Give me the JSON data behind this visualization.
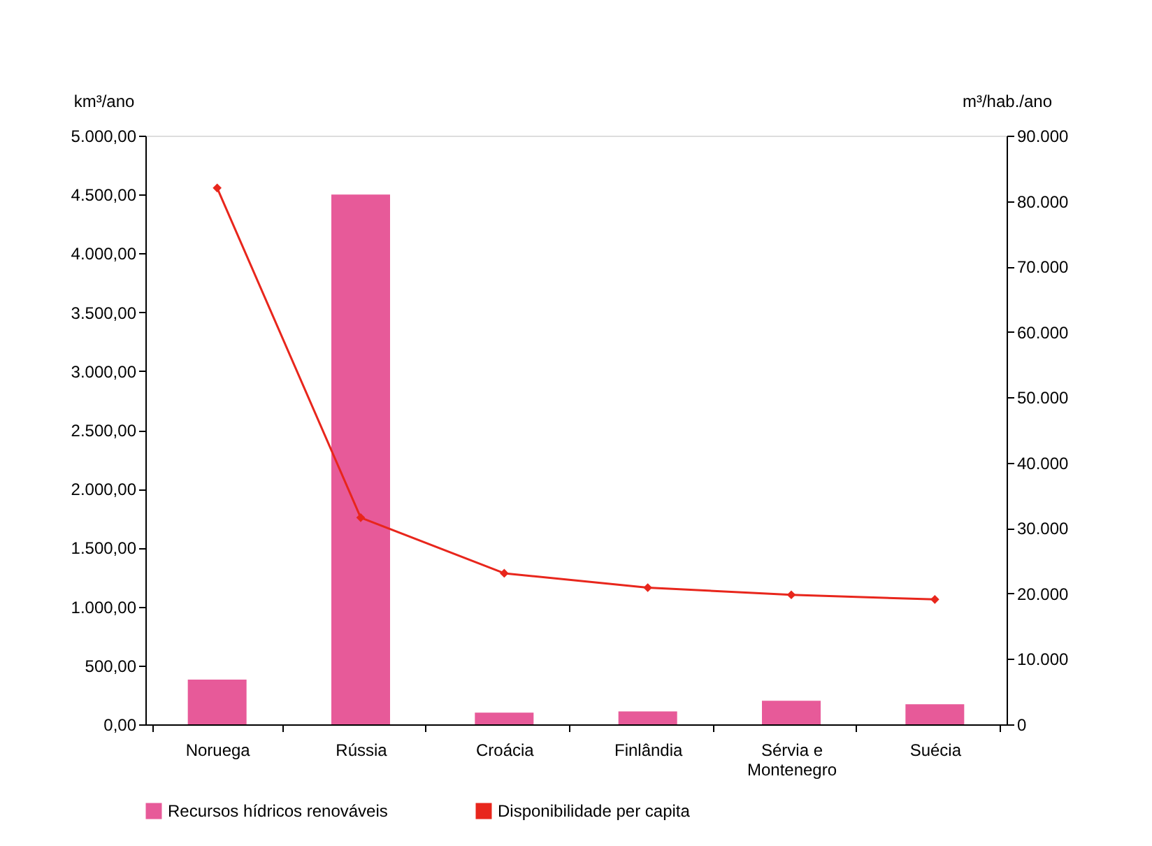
{
  "chart_data": {
    "type": "bar",
    "ylabel": "km³/ano",
    "y2label": "m³/hab./ano",
    "categories": [
      "Noruega",
      "Rússia",
      "Croácia",
      "Finlândia",
      "Sérvia e Montenegro",
      "Suécia"
    ],
    "series": [
      {
        "name": "Recursos hídricos renováveis",
        "color": "#e75a99",
        "values": [
          380,
          4500,
          100,
          110,
          200,
          170
        ]
      },
      {
        "name": "Disponibilidade per capita",
        "type": "line",
        "axis": "y2",
        "color": "#e8261c",
        "marker": "diamond",
        "values": [
          82000,
          31600,
          23100,
          20900,
          19800,
          19100
        ]
      }
    ],
    "ylim": [
      0,
      5000
    ],
    "yticks": [
      {
        "value": 0,
        "label": "0,00"
      },
      {
        "value": 500,
        "label": "500,00"
      },
      {
        "value": 1000,
        "label": "1.000,00"
      },
      {
        "value": 1500,
        "label": "1.500,00"
      },
      {
        "value": 2000,
        "label": "2.000,00"
      },
      {
        "value": 2500,
        "label": "2.500,00"
      },
      {
        "value": 3000,
        "label": "3.000,00"
      },
      {
        "value": 3500,
        "label": "3.500,00"
      },
      {
        "value": 4000,
        "label": "4.000,00"
      },
      {
        "value": 4500,
        "label": "4.500,00"
      },
      {
        "value": 5000,
        "label": "5.000,00"
      }
    ],
    "y2lim": [
      0,
      90000
    ],
    "y2ticks": [
      0,
      {
        "value": 10000,
        "label": "10.000"
      },
      {
        "value": 20000,
        "label": "20.000"
      },
      {
        "value": 30000,
        "label": "30.000"
      },
      {
        "value": 40000,
        "label": "40.000"
      },
      {
        "value": 50000,
        "label": "50.000"
      },
      {
        "value": 60000,
        "label": "60.000"
      },
      {
        "value": 70000,
        "label": "70.000"
      },
      {
        "value": 80000,
        "label": "80.000"
      },
      {
        "value": 90000,
        "label": "90.000"
      }
    ],
    "legend": "bottom",
    "grid": false
  }
}
